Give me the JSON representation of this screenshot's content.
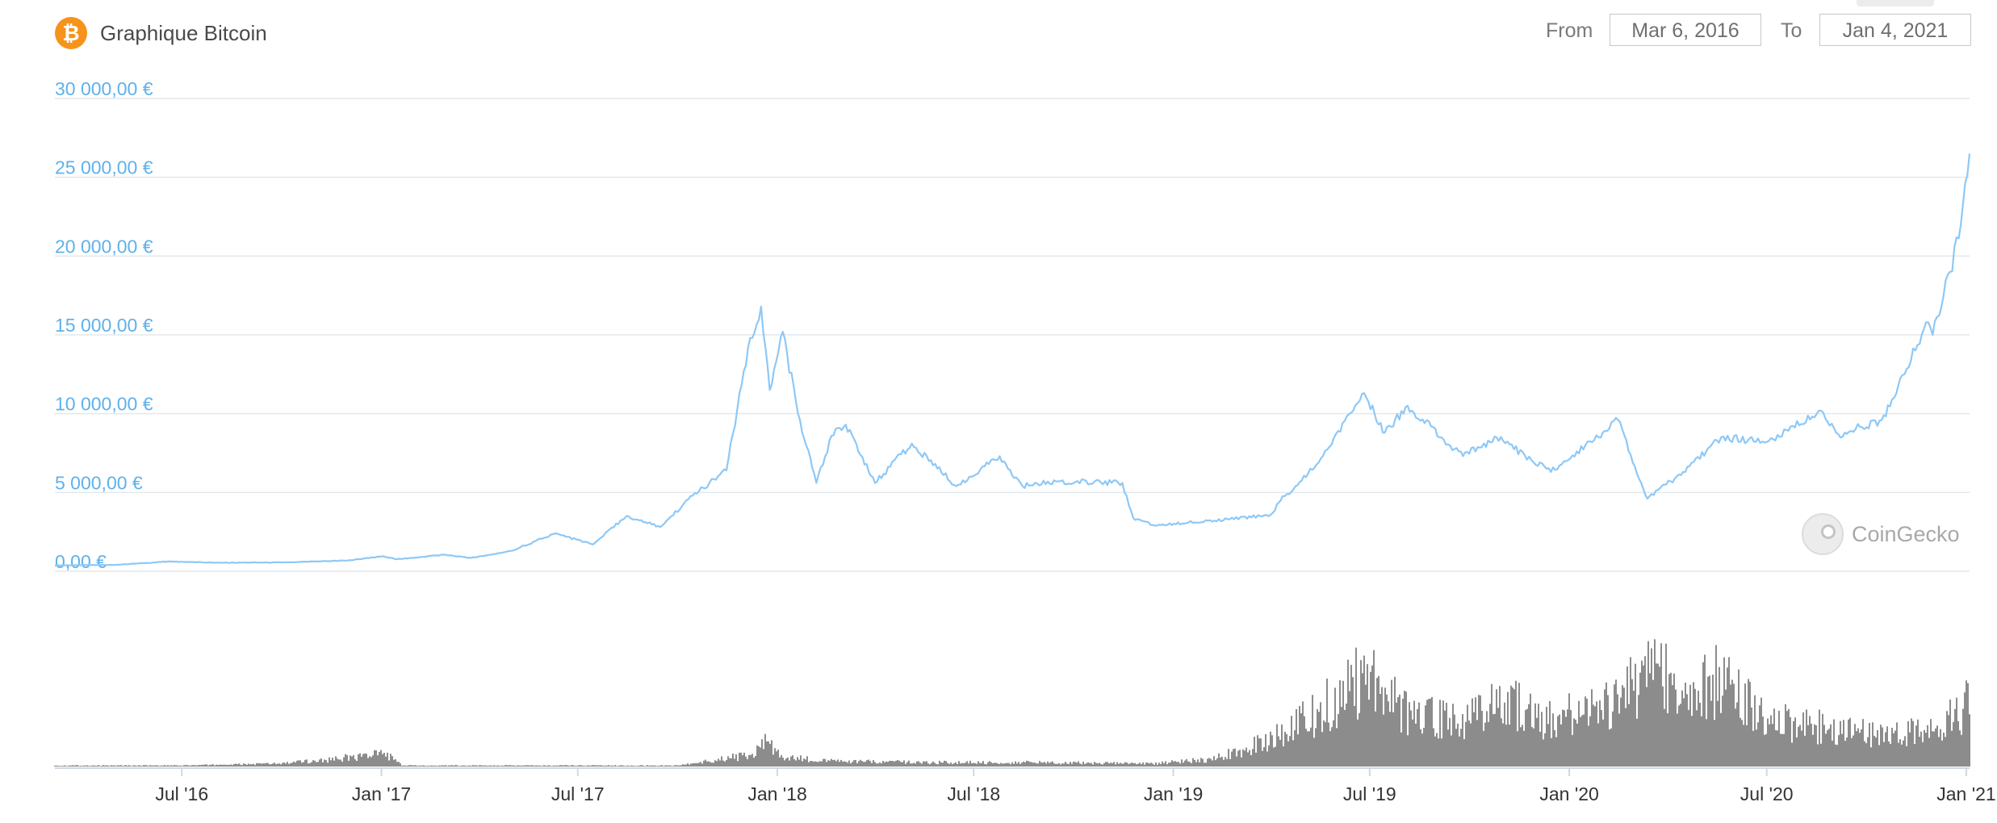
{
  "header": {
    "title": "Graphique Bitcoin",
    "logo_icon": "bitcoin-logo-icon",
    "logo_glyph": "₿",
    "from_label": "From",
    "from_value": "Mar 6, 2016",
    "to_label": "To",
    "to_value": "Jan 4, 2021"
  },
  "watermark": {
    "text": "CoinGecko",
    "icon": "coingecko-gecko-icon"
  },
  "colors": {
    "price_line": "#8ec8f6",
    "axis_labels": "#5fb1ea",
    "grid": "#e3e8ee",
    "volume": "#8c8c8c",
    "logo": "#f7931a"
  },
  "chart_data": {
    "type": "line",
    "title": "Graphique Bitcoin",
    "x_range": [
      "2016-03-06",
      "2021-01-04"
    ],
    "x_ticks": [
      {
        "date": "2016-07-01",
        "label": "Jul '16"
      },
      {
        "date": "2017-01-01",
        "label": "Jan '17"
      },
      {
        "date": "2017-07-01",
        "label": "Jul '17"
      },
      {
        "date": "2018-01-01",
        "label": "Jan '18"
      },
      {
        "date": "2018-07-01",
        "label": "Jul '18"
      },
      {
        "date": "2019-01-01",
        "label": "Jan '19"
      },
      {
        "date": "2019-07-01",
        "label": "Jul '19"
      },
      {
        "date": "2020-01-01",
        "label": "Jan '20"
      },
      {
        "date": "2020-07-01",
        "label": "Jul '20"
      },
      {
        "date": "2021-01-01",
        "label": "Jan '21"
      }
    ],
    "y_ticks": [
      {
        "value": 0,
        "label": "0,00 €"
      },
      {
        "value": 5000,
        "label": "5 000,00 €"
      },
      {
        "value": 10000,
        "label": "10 000,00 €"
      },
      {
        "value": 15000,
        "label": "15 000,00 €"
      },
      {
        "value": 20000,
        "label": "20 000,00 €"
      },
      {
        "value": 25000,
        "label": "25 000,00 €"
      },
      {
        "value": 30000,
        "label": "30 000,00 €"
      }
    ],
    "ylim": [
      0,
      30000
    ],
    "grid": true,
    "series": [
      {
        "points": [
          [
            "2016-03-06",
            370
          ],
          [
            "2016-05-01",
            410
          ],
          [
            "2016-06-20",
            620
          ],
          [
            "2016-08-01",
            540
          ],
          [
            "2016-10-01",
            560
          ],
          [
            "2016-12-01",
            680
          ],
          [
            "2017-01-03",
            950
          ],
          [
            "2017-01-15",
            760
          ],
          [
            "2017-03-01",
            1050
          ],
          [
            "2017-03-25",
            850
          ],
          [
            "2017-05-01",
            1300
          ],
          [
            "2017-06-10",
            2400
          ],
          [
            "2017-07-15",
            1700
          ],
          [
            "2017-08-15",
            3500
          ],
          [
            "2017-09-15",
            2800
          ],
          [
            "2017-10-15",
            4800
          ],
          [
            "2017-11-15",
            6400
          ],
          [
            "2017-12-07",
            14800
          ],
          [
            "2017-12-17",
            16800
          ],
          [
            "2017-12-25",
            11500
          ],
          [
            "2018-01-06",
            15200
          ],
          [
            "2018-01-20",
            10000
          ],
          [
            "2018-02-06",
            5600
          ],
          [
            "2018-02-20",
            8600
          ],
          [
            "2018-03-05",
            9300
          ],
          [
            "2018-04-01",
            5600
          ],
          [
            "2018-05-05",
            8100
          ],
          [
            "2018-06-15",
            5400
          ],
          [
            "2018-07-25",
            7300
          ],
          [
            "2018-08-15",
            5400
          ],
          [
            "2018-09-15",
            5700
          ],
          [
            "2018-11-15",
            5600
          ],
          [
            "2018-11-25",
            3400
          ],
          [
            "2018-12-15",
            2900
          ],
          [
            "2019-01-15",
            3100
          ],
          [
            "2019-02-20",
            3300
          ],
          [
            "2019-04-01",
            3600
          ],
          [
            "2019-04-10",
            4500
          ],
          [
            "2019-05-15",
            6900
          ],
          [
            "2019-06-26",
            11300
          ],
          [
            "2019-07-15",
            8800
          ],
          [
            "2019-08-05",
            10500
          ],
          [
            "2019-09-25",
            7300
          ],
          [
            "2019-10-26",
            8500
          ],
          [
            "2019-12-15",
            6300
          ],
          [
            "2020-02-15",
            9600
          ],
          [
            "2020-03-13",
            4600
          ],
          [
            "2020-04-15",
            6300
          ],
          [
            "2020-05-20",
            8500
          ],
          [
            "2020-07-01",
            8200
          ],
          [
            "2020-08-20",
            10200
          ],
          [
            "2020-09-05",
            8700
          ],
          [
            "2020-10-15",
            9600
          ],
          [
            "2020-11-05",
            12500
          ],
          [
            "2020-11-25",
            15800
          ],
          [
            "2020-12-01",
            15000
          ],
          [
            "2020-12-17",
            19000
          ],
          [
            "2020-12-27",
            22000
          ],
          [
            "2021-01-04",
            26500
          ]
        ]
      }
    ],
    "volume": {
      "relative": true,
      "points": [
        [
          "2016-03-06",
          0.01
        ],
        [
          "2016-07-01",
          0.01
        ],
        [
          "2016-10-01",
          0.03
        ],
        [
          "2016-11-15",
          0.07
        ],
        [
          "2017-01-05",
          0.13
        ],
        [
          "2017-01-20",
          0.01
        ],
        [
          "2017-06-01",
          0.01
        ],
        [
          "2017-10-01",
          0.01
        ],
        [
          "2017-12-10",
          0.12
        ],
        [
          "2017-12-20",
          0.26
        ],
        [
          "2018-01-05",
          0.09
        ],
        [
          "2018-03-01",
          0.05
        ],
        [
          "2018-06-01",
          0.04
        ],
        [
          "2018-09-01",
          0.04
        ],
        [
          "2018-12-15",
          0.03
        ],
        [
          "2019-02-01",
          0.07
        ],
        [
          "2019-03-15",
          0.2
        ],
        [
          "2019-04-15",
          0.35
        ],
        [
          "2019-05-15",
          0.55
        ],
        [
          "2019-06-26",
          0.9
        ],
        [
          "2019-08-01",
          0.55
        ],
        [
          "2019-10-01",
          0.45
        ],
        [
          "2019-10-26",
          0.7
        ],
        [
          "2019-12-15",
          0.45
        ],
        [
          "2020-01-15",
          0.55
        ],
        [
          "2020-02-15",
          0.65
        ],
        [
          "2020-03-13",
          1.0
        ],
        [
          "2020-04-15",
          0.75
        ],
        [
          "2020-05-20",
          0.85
        ],
        [
          "2020-07-01",
          0.45
        ],
        [
          "2020-09-05",
          0.38
        ],
        [
          "2020-10-20",
          0.3
        ],
        [
          "2020-11-15",
          0.35
        ],
        [
          "2020-12-15",
          0.45
        ],
        [
          "2021-01-04",
          0.62
        ]
      ]
    }
  }
}
